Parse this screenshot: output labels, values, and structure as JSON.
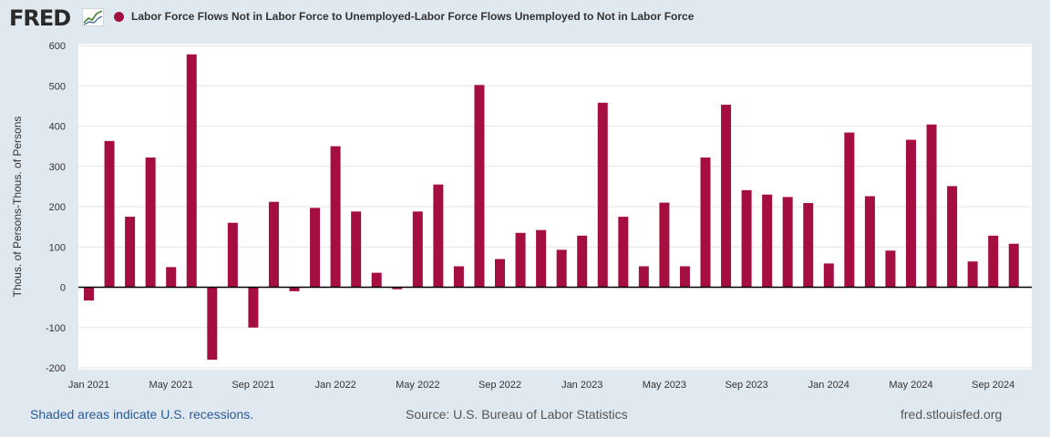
{
  "header": {
    "logo_text": "FRED",
    "logo_icon": "line-chart-icon",
    "title": "Labor Force Flows Not in Labor Force to Unemployed-Labor Force Flows Unemployed to Not in Labor Force"
  },
  "footer": {
    "recessions_note": "Shaded areas indicate U.S. recessions.",
    "source": "Source: U.S. Bureau of Labor Statistics",
    "site": "fred.stlouisfed.org"
  },
  "colors": {
    "series": "#a50f3f",
    "grid": "#e6e6e6",
    "background": "#e1e9f0",
    "plot_background": "#ffffff"
  },
  "chart_data": {
    "type": "bar",
    "title": "Labor Force Flows Not in Labor Force to Unemployed-Labor Force Flows Unemployed to Not in Labor Force",
    "xlabel": "",
    "ylabel": "Thous. of Persons-Thous. of Persons",
    "ylim": [
      -200,
      600
    ],
    "yticks": [
      -200,
      -100,
      0,
      100,
      200,
      300,
      400,
      500,
      600
    ],
    "grid": true,
    "legend_position": "top-left",
    "categories": [
      "2021-01",
      "2021-02",
      "2021-03",
      "2021-04",
      "2021-05",
      "2021-06",
      "2021-07",
      "2021-08",
      "2021-09",
      "2021-10",
      "2021-11",
      "2021-12",
      "2022-01",
      "2022-02",
      "2022-03",
      "2022-04",
      "2022-05",
      "2022-06",
      "2022-07",
      "2022-08",
      "2022-09",
      "2022-10",
      "2022-11",
      "2022-12",
      "2023-01",
      "2023-02",
      "2023-03",
      "2023-04",
      "2023-05",
      "2023-06",
      "2023-07",
      "2023-08",
      "2023-09",
      "2023-10",
      "2023-11",
      "2023-12",
      "2024-01",
      "2024-02",
      "2024-03",
      "2024-04",
      "2024-05",
      "2024-06",
      "2024-07",
      "2024-08",
      "2024-09",
      "2024-10"
    ],
    "x_tick_labels": [
      {
        "index": 0,
        "label": "Jan 2021"
      },
      {
        "index": 4,
        "label": "May 2021"
      },
      {
        "index": 8,
        "label": "Sep 2021"
      },
      {
        "index": 12,
        "label": "Jan 2022"
      },
      {
        "index": 16,
        "label": "May 2022"
      },
      {
        "index": 20,
        "label": "Sep 2022"
      },
      {
        "index": 24,
        "label": "Jan 2023"
      },
      {
        "index": 28,
        "label": "May 2023"
      },
      {
        "index": 32,
        "label": "Sep 2023"
      },
      {
        "index": 36,
        "label": "Jan 2024"
      },
      {
        "index": 40,
        "label": "May 2024"
      },
      {
        "index": 44,
        "label": "Sep 2024"
      }
    ],
    "series": [
      {
        "name": "Labor Force Flows Not in Labor Force to Unemployed-Labor Force Flows Unemployed to Not in Labor Force",
        "values": [
          -33,
          363,
          175,
          322,
          50,
          578,
          -180,
          160,
          -100,
          212,
          -10,
          197,
          350,
          188,
          36,
          -5,
          188,
          255,
          52,
          502,
          70,
          135,
          142,
          93,
          128,
          458,
          175,
          52,
          210,
          52,
          322,
          453,
          241,
          230,
          224,
          209,
          59,
          384,
          226,
          91,
          366,
          404,
          251,
          64,
          128,
          108
        ]
      }
    ]
  }
}
